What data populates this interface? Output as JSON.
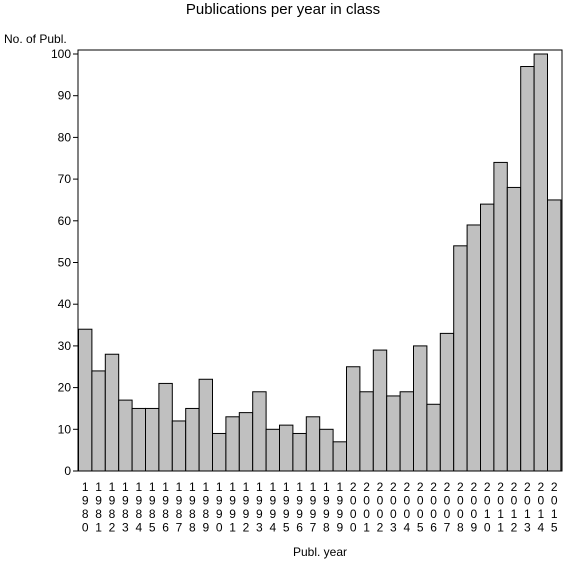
{
  "chart_data": {
    "type": "bar",
    "title": "Publications per year in class",
    "ylabel": "No. of Publ.",
    "xlabel": "Publ. year",
    "ylim": [
      0,
      100
    ],
    "yticks": [
      0,
      10,
      20,
      30,
      40,
      50,
      60,
      70,
      80,
      90,
      100
    ],
    "grid": false,
    "bar_color": "#c0c0c0",
    "edge_color": "#000000",
    "categories": [
      "1980",
      "1981",
      "1982",
      "1983",
      "1984",
      "1985",
      "1986",
      "1987",
      "1988",
      "1989",
      "1990",
      "1991",
      "1992",
      "1993",
      "1994",
      "1995",
      "1996",
      "1997",
      "1998",
      "1999",
      "2000",
      "2001",
      "2002",
      "2003",
      "2004",
      "2005",
      "2006",
      "2007",
      "2008",
      "2009",
      "2010",
      "2011",
      "2012",
      "2013",
      "2014",
      "2015"
    ],
    "values": [
      34,
      24,
      28,
      17,
      15,
      15,
      21,
      12,
      15,
      22,
      9,
      13,
      14,
      19,
      10,
      11,
      9,
      13,
      10,
      7,
      25,
      19,
      29,
      18,
      19,
      30,
      16,
      33,
      54,
      59,
      64,
      74,
      68,
      97,
      100,
      65
    ]
  }
}
